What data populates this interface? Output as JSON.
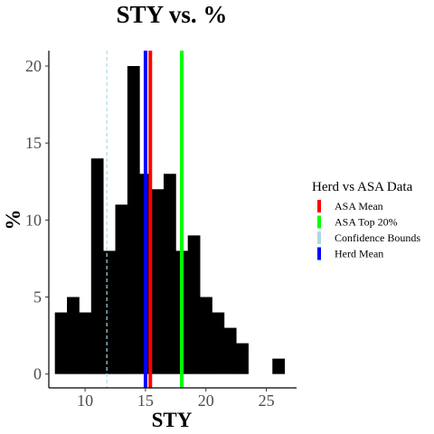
{
  "chart_data": {
    "type": "bar",
    "title": "STY  vs.  %",
    "xlabel": "STY",
    "ylabel": "%",
    "xlim": [
      7,
      27.5
    ],
    "ylim": [
      -0.9,
      21
    ],
    "xticks": [
      10,
      15,
      20,
      25
    ],
    "yticks": [
      0,
      5,
      10,
      15,
      20
    ],
    "bin_width": 1,
    "bins": [
      {
        "x": 8,
        "count": 4
      },
      {
        "x": 9,
        "count": 5
      },
      {
        "x": 10,
        "count": 4
      },
      {
        "x": 11,
        "count": 14
      },
      {
        "x": 12,
        "count": 8
      },
      {
        "x": 13,
        "count": 11
      },
      {
        "x": 14,
        "count": 20
      },
      {
        "x": 15,
        "count": 13
      },
      {
        "x": 16,
        "count": 12
      },
      {
        "x": 17,
        "count": 13
      },
      {
        "x": 18,
        "count": 8
      },
      {
        "x": 19,
        "count": 9
      },
      {
        "x": 20,
        "count": 5
      },
      {
        "x": 21,
        "count": 4
      },
      {
        "x": 22,
        "count": 3
      },
      {
        "x": 23,
        "count": 2
      },
      {
        "x": 24,
        "count": 0
      },
      {
        "x": 25,
        "count": 0
      },
      {
        "x": 26,
        "count": 1
      }
    ],
    "reference_lines": [
      {
        "name": "ASA Mean",
        "x": 15.4,
        "color": "#ff0000",
        "style": "solid"
      },
      {
        "name": "ASA Top 20%",
        "x": 18.0,
        "color": "#00ff00",
        "style": "solid"
      },
      {
        "name": "Confidence Bounds",
        "x": 11.8,
        "color": "#add8e6",
        "style": "dashed"
      },
      {
        "name": "Herd Mean",
        "x": 15.0,
        "color": "#0000ff",
        "style": "solid"
      }
    ],
    "legend": {
      "title": "Herd vs ASA Data",
      "placement": "right",
      "items": [
        {
          "label": "ASA Mean",
          "color": "#ff0000"
        },
        {
          "label": "ASA Top 20%",
          "color": "#00ff00"
        },
        {
          "label": "Confidence Bounds",
          "color": "#add8e6"
        },
        {
          "label": "Herd Mean",
          "color": "#0000ff"
        }
      ]
    },
    "grid": false
  }
}
